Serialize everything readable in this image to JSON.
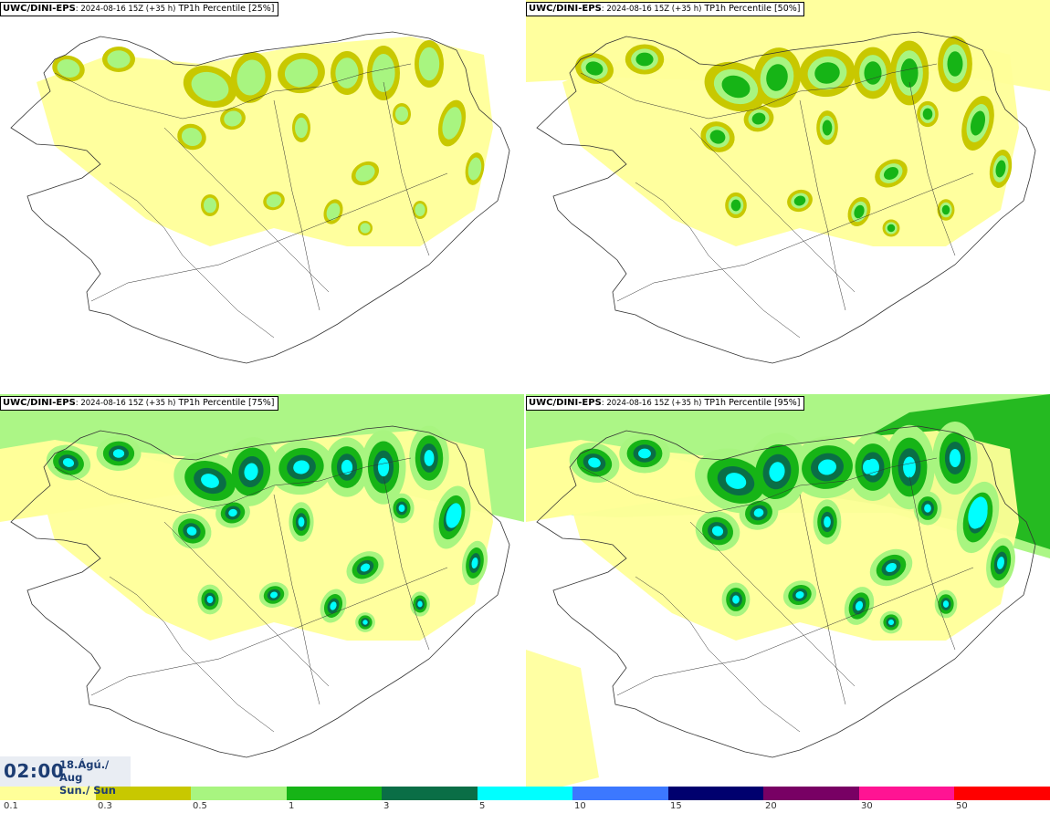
{
  "panels": [
    {
      "model": "UWC/DINI-EPS",
      "run": ": 2024-08-16 15Z (+35 h)",
      "field": " TP1h Percentile [25%]",
      "intensity": 0
    },
    {
      "model": "UWC/DINI-EPS",
      "run": ": 2024-08-16 15Z (+35 h)",
      "field": " TP1h Percentile [50%]",
      "intensity": 1
    },
    {
      "model": "UWC/DINI-EPS",
      "run": ": 2024-08-16 15Z (+35 h)",
      "field": " TP1h Percentile [75%]",
      "intensity": 2
    },
    {
      "model": "UWC/DINI-EPS",
      "run": ": 2024-08-16 15Z (+35 h)",
      "field": " TP1h Percentile [95%]",
      "intensity": 3
    }
  ],
  "valid_time": {
    "time": "02:00",
    "date_line": "18.Ágú./ Aug",
    "day_line": "Sun./ Sun"
  },
  "colorbar": {
    "colors": [
      "#ffff99",
      "#c8c800",
      "#a8f580",
      "#16b416",
      "#0a6e46",
      "#00ffff",
      "#3c78ff",
      "#00006e",
      "#780064",
      "#ff1493",
      "#ff0000"
    ],
    "labels": [
      "0.1",
      "0.3",
      "0.5",
      "1",
      "3",
      "5",
      "10",
      "15",
      "20",
      "30",
      "50"
    ]
  },
  "colors": {
    "coastline": "#333333",
    "title_text": "#1d3d73"
  }
}
